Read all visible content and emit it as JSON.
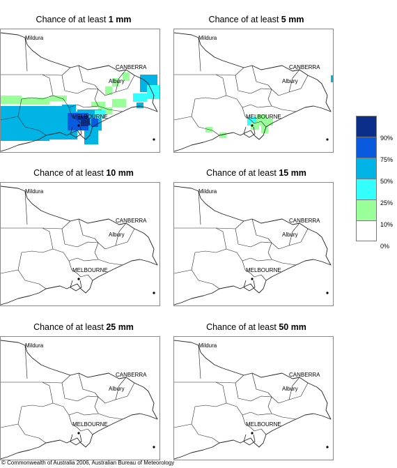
{
  "panels": [
    {
      "title_prefix": "Chance of at least ",
      "amount": "1 mm"
    },
    {
      "title_prefix": "Chance of at least ",
      "amount": "5 mm"
    },
    {
      "title_prefix": "Chance of at least ",
      "amount": "10 mm"
    },
    {
      "title_prefix": "Chance of at least ",
      "amount": "15 mm"
    },
    {
      "title_prefix": "Chance of at least ",
      "amount": "25 mm"
    },
    {
      "title_prefix": "Chance of at least ",
      "amount": "50 mm"
    }
  ],
  "places": {
    "mildura": "Mildura",
    "canberra": "CANBERRA",
    "albury": "Albury",
    "melbourne": "MELBOURNE"
  },
  "legend": {
    "ticks": [
      "90%",
      "75%",
      "50%",
      "25%",
      "10%",
      "0%"
    ],
    "colors": [
      "#0a2e8a",
      "#0a5ae0",
      "#00b4e6",
      "#33ffff",
      "#99ff99",
      "#ffffff"
    ]
  },
  "footer": "© Commonwealth of Australia 2006, Australian Bureau of Meteorology"
}
